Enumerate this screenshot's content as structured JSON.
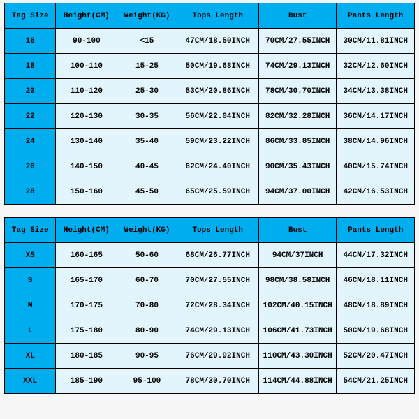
{
  "palette": {
    "header_bg": "#00aeef",
    "body_bg": "#e2f4fc",
    "border": "#000000",
    "page_bg": "#f7f7f7"
  },
  "columns": [
    "Tag Size",
    "Height(CM)",
    "Weight(KG)",
    "Tops Length",
    "Bust",
    "Pants Length"
  ],
  "table1": {
    "rows": [
      [
        "16",
        "90-100",
        "<15",
        "47CM/18.50INCH",
        "70CM/27.55INCH",
        "30CM/11.81INCH"
      ],
      [
        "18",
        "100-110",
        "15-25",
        "50CM/19.68INCH",
        "74CM/29.13INCH",
        "32CM/12.60INCH"
      ],
      [
        "20",
        "110-120",
        "25-30",
        "53CM/20.86INCH",
        "78CM/30.70INCH",
        "34CM/13.38INCH"
      ],
      [
        "22",
        "120-130",
        "30-35",
        "56CM/22.04INCH",
        "82CM/32.28INCH",
        "36CM/14.17INCH"
      ],
      [
        "24",
        "130-140",
        "35-40",
        "59CM/23.22INCH",
        "86CM/33.85INCH",
        "38CM/14.96INCH"
      ],
      [
        "26",
        "140-150",
        "40-45",
        "62CM/24.40INCH",
        "90CM/35.43INCH",
        "40CM/15.74INCH"
      ],
      [
        "28",
        "150-160",
        "45-50",
        "65CM/25.59INCH",
        "94CM/37.00INCH",
        "42CM/16.53INCH"
      ]
    ]
  },
  "table2": {
    "rows": [
      [
        "XS",
        "160-165",
        "50-60",
        "68CM/26.77INCH",
        "94CM/37INCH",
        "44CM/17.32INCH"
      ],
      [
        "S",
        "165-170",
        "60-70",
        "70CM/27.55INCH",
        "98CM/38.58INCH",
        "46CM/18.11INCH"
      ],
      [
        "M",
        "170-175",
        "70-80",
        "72CM/28.34INCH",
        "102CM/40.15INCH",
        "48CM/18.89INCH"
      ],
      [
        "L",
        "175-180",
        "80-90",
        "74CM/29.13INCH",
        "106CM/41.73INCH",
        "50CM/19.68INCH"
      ],
      [
        "XL",
        "180-185",
        "90-95",
        "76CM/29.92INCH",
        "110CM/43.30INCH",
        "52CM/20.47INCH"
      ],
      [
        "XXL",
        "185-190",
        "95-100",
        "78CM/30.70INCH",
        "114CM/44.88INCH",
        "54CM/21.25INCH"
      ]
    ]
  }
}
